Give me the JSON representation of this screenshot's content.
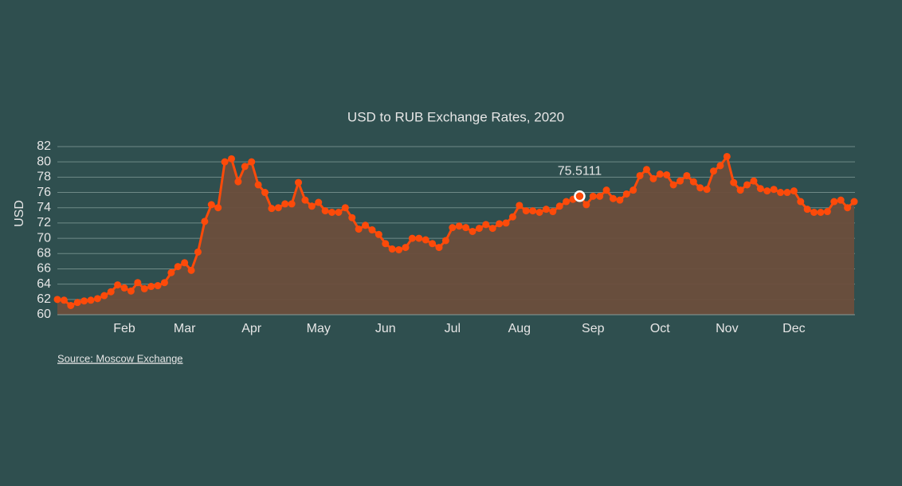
{
  "chart_data": {
    "type": "line",
    "title": "USD to RUB Exchange Rates, 2020",
    "y_label": "USD",
    "source": "Source: Moscow Exchange",
    "categories": [
      null,
      null,
      null,
      null,
      null,
      null,
      null,
      null,
      null,
      null,
      "Feb",
      null,
      null,
      null,
      null,
      null,
      null,
      null,
      null,
      "Mar",
      null,
      null,
      null,
      null,
      null,
      null,
      null,
      null,
      null,
      "Apr",
      null,
      null,
      null,
      null,
      null,
      null,
      null,
      null,
      null,
      "May",
      null,
      null,
      null,
      null,
      null,
      null,
      null,
      null,
      null,
      "Jun",
      null,
      null,
      null,
      null,
      null,
      null,
      null,
      null,
      null,
      "Jul",
      null,
      null,
      null,
      null,
      null,
      null,
      null,
      null,
      null,
      "Aug",
      null,
      null,
      null,
      null,
      null,
      null,
      null,
      null,
      null,
      null,
      "Sep",
      null,
      null,
      null,
      null,
      null,
      null,
      null,
      null,
      null,
      "Oct",
      null,
      null,
      null,
      null,
      null,
      null,
      null,
      null,
      null,
      "Nov",
      null,
      null,
      null,
      null,
      null,
      null,
      null,
      null,
      null,
      "Dec",
      null,
      null,
      null,
      null,
      null,
      null,
      null,
      null,
      null
    ],
    "series": [
      {
        "name": "USD",
        "color": "#fc4a0a",
        "area_color": "#6b4e3c",
        "values": [
          62.0,
          61.9,
          61.2,
          61.6,
          61.8,
          61.9,
          62.1,
          62.5,
          63.0,
          63.9,
          63.5,
          63.1,
          64.2,
          63.4,
          63.7,
          63.8,
          64.2,
          65.5,
          66.3,
          66.8,
          65.8,
          68.2,
          72.2,
          74.4,
          74.0,
          80.0,
          80.4,
          77.4,
          79.4,
          80.0,
          77.0,
          76.0,
          73.9,
          74.0,
          74.5,
          74.5,
          77.3,
          75.0,
          74.2,
          74.7,
          73.6,
          73.4,
          73.4,
          74.0,
          72.7,
          71.2,
          71.7,
          71.1,
          70.5,
          69.3,
          68.6,
          68.5,
          68.8,
          70.0,
          70.0,
          69.8,
          69.3,
          68.8,
          69.7,
          71.4,
          71.6,
          71.4,
          70.9,
          71.3,
          71.8,
          71.3,
          71.9,
          72.0,
          72.8,
          74.3,
          73.6,
          73.6,
          73.4,
          73.8,
          73.5,
          74.2,
          74.8,
          75.1,
          75.5111,
          74.4,
          75.5,
          75.5,
          76.3,
          75.2,
          75.0,
          75.8,
          76.3,
          78.2,
          79.0,
          77.8,
          78.4,
          78.3,
          77.0,
          77.5,
          78.2,
          77.4,
          76.6,
          76.4,
          78.8,
          79.5,
          80.7,
          77.3,
          76.3,
          77.0,
          77.5,
          76.5,
          76.2,
          76.4,
          76.0,
          76.0,
          76.2,
          74.8,
          73.8,
          73.4,
          73.4,
          73.5,
          74.8,
          75.0,
          74.0,
          74.8
        ]
      }
    ],
    "highlighted_point": 78,
    "ylim": [
      60,
      82
    ],
    "yticks": [
      60,
      62,
      64,
      66,
      68,
      70,
      72,
      74,
      76,
      78,
      80,
      82
    ],
    "grid": true
  }
}
